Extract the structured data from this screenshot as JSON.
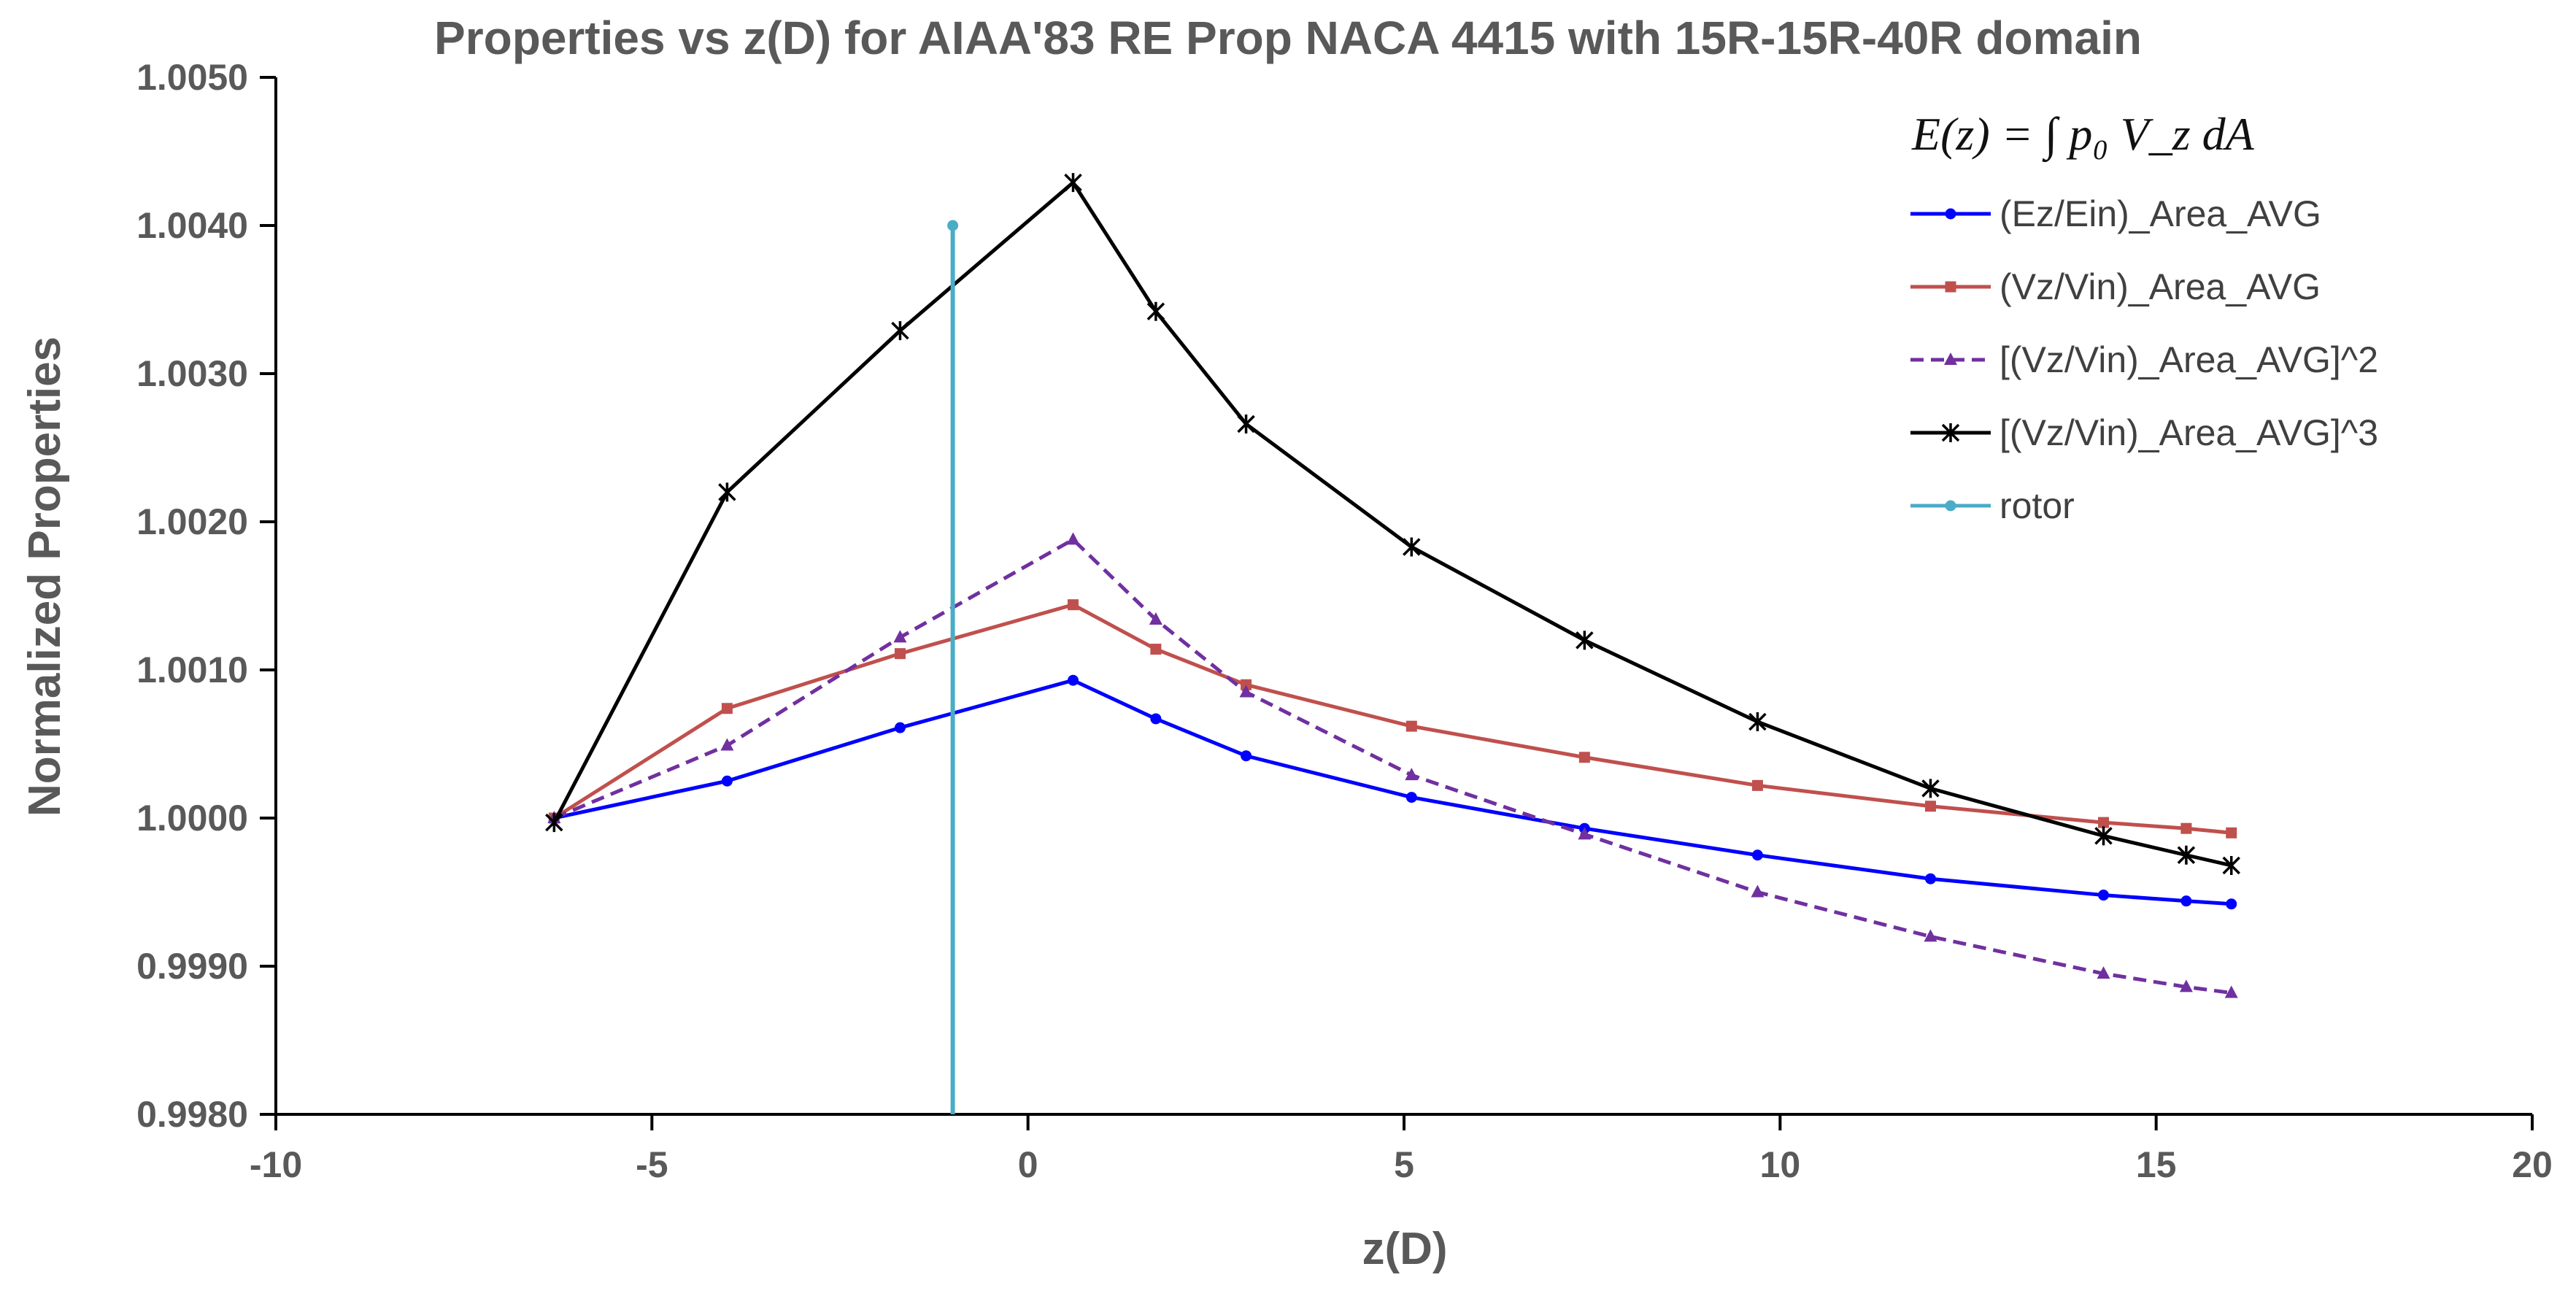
{
  "chart_data": {
    "type": "line",
    "title": "Properties vs z(D) for AIAA'83 RE Prop NACA 4415 with 15R-15R-40R domain",
    "xlabel": "z(D)",
    "ylabel": "Normalized Properties",
    "xlim": [
      -10,
      20
    ],
    "ylim": [
      0.998,
      1.005
    ],
    "xticks": [
      -10,
      -5,
      0,
      5,
      10,
      15,
      20
    ],
    "xtick_labels": [
      "-10",
      "-5",
      "0",
      "5",
      "10",
      "15",
      "20"
    ],
    "yticks": [
      0.998,
      0.999,
      1.0,
      1.001,
      1.002,
      1.003,
      1.004,
      1.005
    ],
    "ytick_labels": [
      "0.9980",
      "0.9990",
      "1.0000",
      "1.0010",
      "1.0020",
      "1.0030",
      "1.0040",
      "1.0050"
    ],
    "grid": false,
    "legend_position": "top-right",
    "legend_formula": "E(z) = ∫ p₀ V_z dA",
    "series": [
      {
        "name": "(Ez/Ein)_Area_AVG",
        "color": "#0000ff",
        "marker": "circle",
        "dash": "solid",
        "x": [
          -6.3,
          -4.0,
          -1.7,
          0.6,
          1.7,
          2.9,
          5.1,
          7.4,
          9.7,
          12.0,
          14.3,
          15.4,
          16.0
        ],
        "y": [
          1.0,
          1.00025,
          1.00061,
          1.00093,
          1.00067,
          1.00042,
          1.00014,
          0.99993,
          0.99975,
          0.99959,
          0.99948,
          0.99944,
          0.99942
        ]
      },
      {
        "name": "(Vz/Vin)_Area_AVG",
        "color": "#c0504d",
        "marker": "square",
        "dash": "solid",
        "x": [
          -6.3,
          -4.0,
          -1.7,
          0.6,
          1.7,
          2.9,
          5.1,
          7.4,
          9.7,
          12.0,
          14.3,
          15.4,
          16.0
        ],
        "y": [
          1.0,
          1.00074,
          1.00111,
          1.00144,
          1.00114,
          1.0009,
          1.00062,
          1.00041,
          1.00022,
          1.00008,
          0.99997,
          0.99993,
          0.9999
        ]
      },
      {
        "name": "[(Vz/Vin)_Area_AVG]^2",
        "color": "#7030a0",
        "marker": "triangle",
        "dash": "dashed",
        "x": [
          -6.3,
          -4.0,
          -1.7,
          0.6,
          1.7,
          2.9,
          5.1,
          7.4,
          9.7,
          12.0,
          14.3,
          15.4,
          16.0
        ],
        "y": [
          1.0,
          1.00049,
          1.00122,
          1.00188,
          1.00134,
          1.00085,
          1.00029,
          0.99989,
          0.9995,
          0.9992,
          0.99895,
          0.99886,
          0.99882
        ]
      },
      {
        "name": "[(Vz/Vin)_Area_AVG]^3",
        "color": "#000000",
        "marker": "asterisk",
        "dash": "solid",
        "x": [
          -6.3,
          -4.0,
          -1.7,
          0.6,
          1.7,
          2.9,
          5.1,
          7.4,
          9.7,
          12.0,
          14.3,
          15.4,
          16.0
        ],
        "y": [
          0.99997,
          1.0022,
          1.00329,
          1.00429,
          1.00342,
          1.00266,
          1.00183,
          1.0012,
          1.00065,
          1.0002,
          0.99988,
          0.99975,
          0.99968
        ]
      },
      {
        "name": "rotor",
        "color": "#4bacc6",
        "marker": "circle",
        "dash": "solid",
        "x": [
          -1.0,
          -1.0
        ],
        "y": [
          0.998,
          1.004
        ]
      }
    ]
  }
}
